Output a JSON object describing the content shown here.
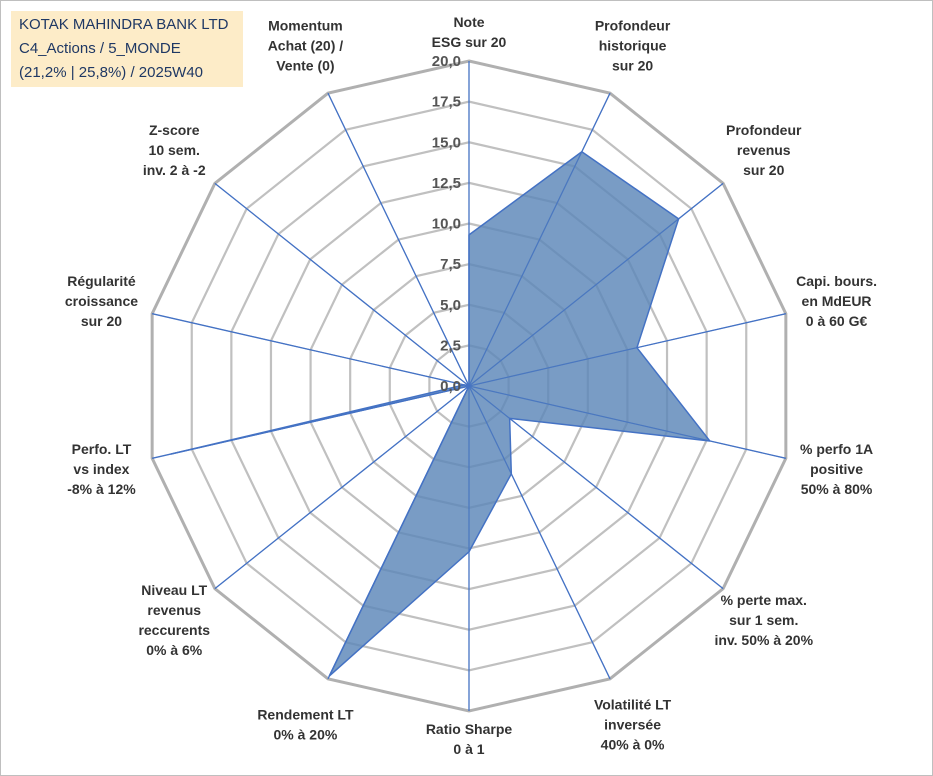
{
  "info_box": {
    "name": "KOTAK MAHINDRA BANK LTD",
    "category": "C4_Actions / 5_MONDE",
    "details": "(21,2% | 25,8%) / 2025W40"
  },
  "colors": {
    "fill": "#5b86b8",
    "series_line": "#4472c4",
    "spokes": "#4472c4",
    "grid": "#c0c0c0",
    "grid_outer": "#b0b0b0",
    "box": "#fdecc8"
  },
  "chart_data": {
    "type": "radar",
    "title": "",
    "rmin": 0,
    "rmax": 20,
    "ticks": [
      "0,0",
      "2,5",
      "5,0",
      "7,5",
      "10,0",
      "12,5",
      "15,0",
      "17,5",
      "20,0"
    ],
    "tick_values": [
      0,
      2.5,
      5,
      7.5,
      10,
      12.5,
      15,
      17.5,
      20
    ],
    "grid": true,
    "legend": "none",
    "axes": [
      {
        "lines": [
          "Note",
          "ESG sur 20"
        ]
      },
      {
        "lines": [
          "Profondeur",
          "historique",
          "sur 20"
        ]
      },
      {
        "lines": [
          "Profondeur",
          "revenus",
          "sur 20"
        ]
      },
      {
        "lines": [
          "Capi. bours.",
          "en MdEUR",
          "0 à 60 G€"
        ]
      },
      {
        "lines": [
          "% perfo 1A",
          "positive",
          "50% à 80%"
        ]
      },
      {
        "lines": [
          "% perte max.",
          "sur 1 sem.",
          "inv. 50% à 20%"
        ]
      },
      {
        "lines": [
          "Volatilité LT",
          "inversée",
          "40% à 0%"
        ]
      },
      {
        "lines": [
          "Ratio Sharpe",
          "0 à 1"
        ]
      },
      {
        "lines": [
          "Rendement LT",
          "0% à 20%"
        ]
      },
      {
        "lines": [
          "Niveau LT",
          "revenus",
          "reccurents",
          "0% à 6%"
        ]
      },
      {
        "lines": [
          "Perfo. LT",
          "vs index",
          "-8% à 12%"
        ]
      },
      {
        "lines": [
          "Régularité",
          "croissance",
          "sur 20"
        ]
      },
      {
        "lines": [
          "Z-score",
          "10 sem.",
          "inv. 2 à -2"
        ]
      },
      {
        "lines": [
          "Momentum",
          "Achat (20) /",
          "Vente (0)"
        ]
      }
    ],
    "series": [
      {
        "values": [
          9.3,
          16.0,
          16.5,
          10.6,
          15.2,
          3.2,
          6.0,
          10.2,
          19.8,
          0.0,
          18.8,
          0.3,
          0.0,
          0.0
        ]
      }
    ]
  }
}
